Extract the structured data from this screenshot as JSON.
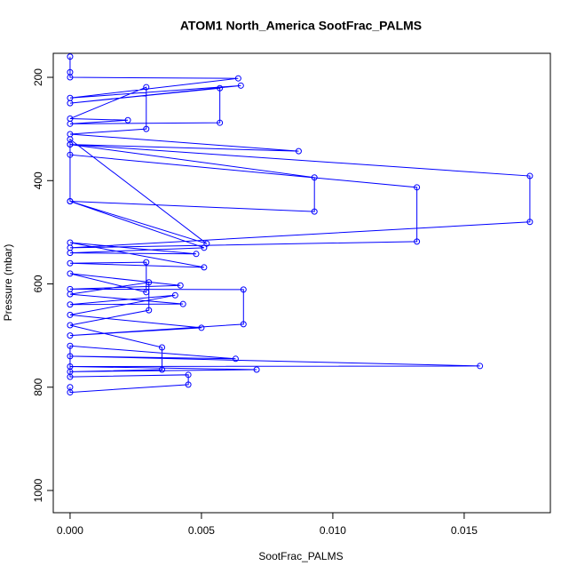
{
  "chart_data": {
    "type": "line",
    "title": "ATOM1 North_America SootFrac_PALMS",
    "x_label": "SootFrac_PALMS",
    "y_label": "Pressure (mbar)",
    "color": "#0000ff",
    "x": [
      0,
      0,
      0,
      0.0064,
      0,
      0.0065,
      0,
      0.0057,
      0.0057,
      0,
      0.0022,
      0,
      0.0029,
      0.0029,
      0,
      0.0087,
      0,
      0.0093,
      0.0093,
      0,
      0,
      0.0175,
      0.0175,
      0,
      0.0132,
      0.0132,
      0,
      0,
      0.0052,
      0,
      0.0051,
      0,
      0.0048,
      0,
      0.0051,
      0,
      0.0029,
      0.0029,
      0,
      0.0042,
      0,
      0.0066,
      0.0066,
      0,
      0.005,
      0,
      0.004,
      0,
      0.0043,
      0,
      0.003,
      0.003,
      0,
      0.0035,
      0.0035,
      0,
      0.0071,
      0,
      0.0156,
      0,
      0.0063,
      0,
      0,
      0.0045,
      0.0045,
      0,
      0
    ],
    "values": [
      160,
      190,
      200,
      202,
      240,
      216,
      250,
      221,
      288,
      290,
      283,
      280,
      219,
      300,
      310,
      343,
      330,
      394,
      460,
      440,
      330,
      391,
      480,
      530,
      518,
      413,
      350,
      320,
      522,
      440,
      530,
      540,
      542,
      520,
      568,
      560,
      558,
      616,
      580,
      603,
      610,
      611,
      678,
      700,
      685,
      660,
      622,
      640,
      639,
      620,
      597,
      651,
      680,
      723,
      766,
      770,
      766,
      760,
      759,
      740,
      745,
      720,
      780,
      776,
      795,
      810,
      800
    ],
    "xlim": [
      -0.00064,
      0.01828
    ],
    "ylim": [
      1043,
      153.5
    ],
    "xticks": [
      {
        "value": 0,
        "label": "0.000"
      },
      {
        "value": 0.005,
        "label": "0.005"
      },
      {
        "value": 0.01,
        "label": "0.010"
      },
      {
        "value": 0.015,
        "label": "0.015"
      }
    ],
    "yticks": [
      200,
      400,
      600,
      800,
      1000
    ]
  }
}
